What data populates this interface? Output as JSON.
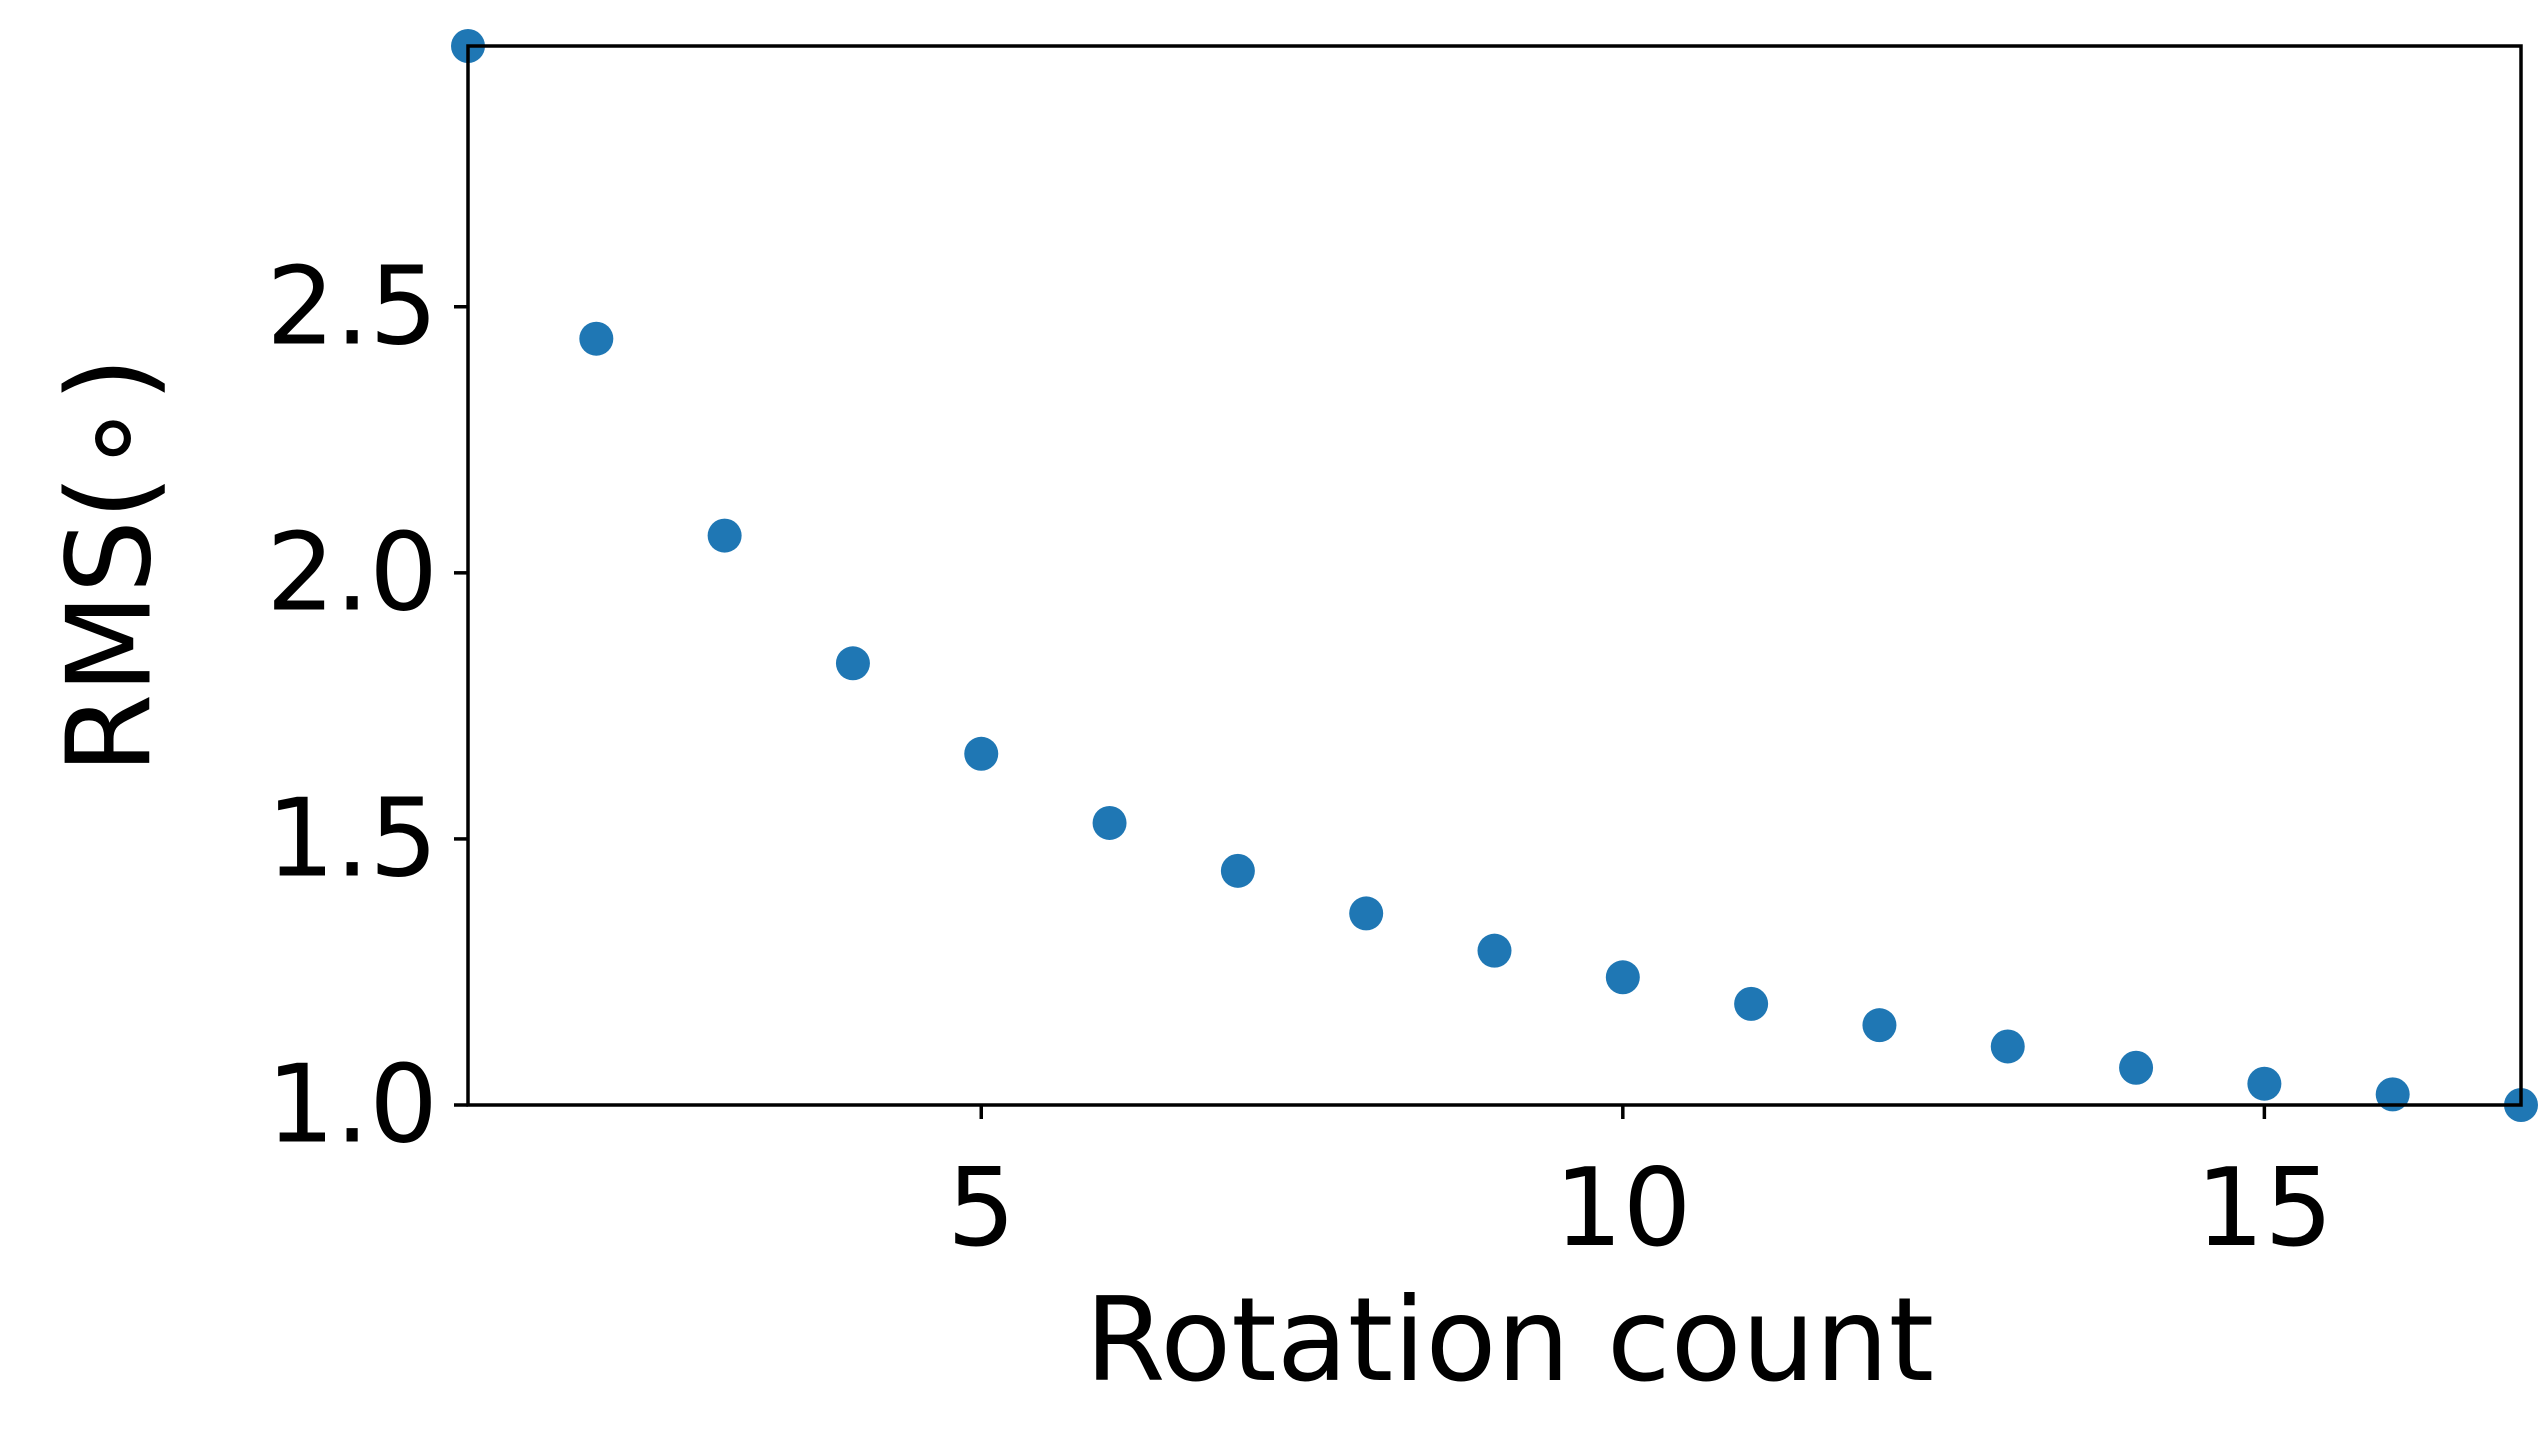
{
  "chart_data": {
    "type": "scatter",
    "title": "",
    "xlabel": "Rotation count",
    "ylabel": "RMS(∘)",
    "xlim": [
      1,
      17
    ],
    "ylim": [
      1.0,
      2.99
    ],
    "xticks": [
      5,
      10,
      15
    ],
    "xtick_labels": [
      "5",
      "10",
      "15"
    ],
    "yticks": [
      1.0,
      1.5,
      2.0,
      2.5
    ],
    "ytick_labels": [
      "1.0",
      "1.5",
      "2.0",
      "2.5"
    ],
    "grid": false,
    "legend": "none",
    "series": [
      {
        "color": "#1f77b4",
        "points": [
          {
            "x": 1,
            "y": 2.99
          },
          {
            "x": 2,
            "y": 2.44
          },
          {
            "x": 3,
            "y": 2.07
          },
          {
            "x": 4,
            "y": 1.83
          },
          {
            "x": 5,
            "y": 1.66
          },
          {
            "x": 6,
            "y": 1.53
          },
          {
            "x": 7,
            "y": 1.44
          },
          {
            "x": 8,
            "y": 1.36
          },
          {
            "x": 9,
            "y": 1.29
          },
          {
            "x": 10,
            "y": 1.24
          },
          {
            "x": 11,
            "y": 1.19
          },
          {
            "x": 12,
            "y": 1.15
          },
          {
            "x": 13,
            "y": 1.11
          },
          {
            "x": 14,
            "y": 1.07
          },
          {
            "x": 15,
            "y": 1.04
          },
          {
            "x": 16,
            "y": 1.02
          },
          {
            "x": 17,
            "y": 1.0
          }
        ]
      }
    ]
  }
}
